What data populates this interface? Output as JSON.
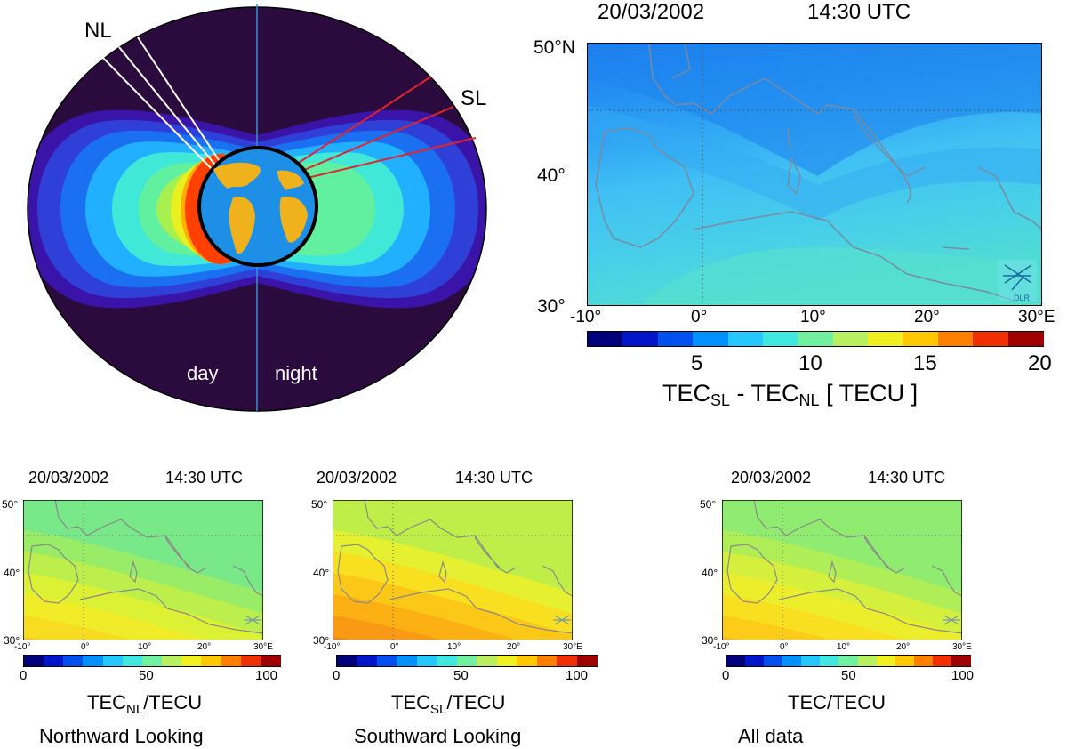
{
  "schematic": {
    "label_nl": "NL",
    "label_sl": "SL",
    "label_day": "day",
    "label_night": "night"
  },
  "main_map": {
    "date": "20/03/2002",
    "time": "14:30 UTC",
    "lat_ticks": [
      "50°N",
      "40°",
      "30°"
    ],
    "lon_ticks": [
      "-10°",
      "0°",
      "10°",
      "20°",
      "30°E"
    ],
    "colorbar_ticks": [
      "5",
      "10",
      "15",
      "20"
    ],
    "colorbar_range": [
      0,
      20
    ],
    "caption_main": "TEC",
    "caption_sub1": "SL",
    "caption_mid": " - TEC",
    "caption_sub2": "NL",
    "caption_end": " [ TECU ]",
    "logo_text": "DLR"
  },
  "small_maps": [
    {
      "date": "20/03/2002",
      "time": "14:30 UTC",
      "lat_ticks": [
        "50°",
        "40°",
        "30°"
      ],
      "lon_ticks": [
        "-10°",
        "0°",
        "10°",
        "20°",
        "30°E"
      ],
      "colorbar_ticks": [
        "0",
        "50",
        "100"
      ],
      "caption_main": "TEC",
      "caption_sub": "NL",
      "caption_end": "/TECU",
      "title": "Northward Looking"
    },
    {
      "date": "20/03/2002",
      "time": "14:30 UTC",
      "lat_ticks": [
        "50°",
        "40°",
        "30°"
      ],
      "lon_ticks": [
        "-10°",
        "0°",
        "10°",
        "20°",
        "30°E"
      ],
      "colorbar_ticks": [
        "0",
        "50",
        "100"
      ],
      "caption_main": "TEC",
      "caption_sub": "SL",
      "caption_end": "/TECU",
      "title": "Southward Looking"
    },
    {
      "date": "20/03/2002",
      "time": "14:30 UTC",
      "lat_ticks": [
        "50°",
        "40°",
        "30°"
      ],
      "lon_ticks": [
        "-10°",
        "0°",
        "10°",
        "20°",
        "30°E"
      ],
      "colorbar_ticks": [
        "0",
        "50",
        "100"
      ],
      "caption_main": "TEC",
      "caption_sub": "",
      "caption_end": "/TECU",
      "title": "All data"
    }
  ],
  "colors": {
    "space": "#2b0a3d",
    "earth_ocean": "#1e8fe6",
    "earth_land": "#f0b21c",
    "ray_nl": "#ffffff",
    "ray_sl": "#e0242c",
    "meridian": "#3a8fd0",
    "coast": "#8a8a8a",
    "tec_colormap": [
      "#00007a",
      "#0016c8",
      "#0050f0",
      "#0090ff",
      "#24c8ff",
      "#40e8e0",
      "#70f0a0",
      "#b8f060",
      "#f0f020",
      "#ffc800",
      "#ff8000",
      "#f03000",
      "#a00000"
    ]
  }
}
